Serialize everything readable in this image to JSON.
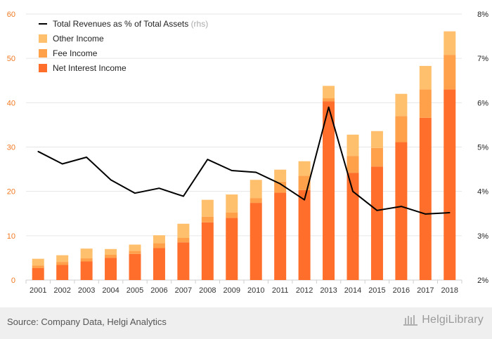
{
  "chart_data": {
    "type": "bar",
    "stacked": true,
    "categories": [
      "2001",
      "2002",
      "2003",
      "2004",
      "2005",
      "2006",
      "2007",
      "2008",
      "2009",
      "2010",
      "2011",
      "2012",
      "2013",
      "2014",
      "2015",
      "2016",
      "2017",
      "2018"
    ],
    "series": [
      {
        "name": "Net Interest Income",
        "color": "#ff6e2a",
        "values": [
          2.7,
          3.4,
          4.2,
          5.0,
          5.9,
          7.2,
          8.5,
          13.0,
          14.0,
          17.4,
          19.7,
          20.3,
          40.3,
          24.2,
          25.6,
          31.1,
          36.6,
          43.0
        ]
      },
      {
        "name": "Fee Income",
        "color": "#ffa04a",
        "values": [
          0.6,
          0.7,
          0.7,
          0.7,
          0.7,
          1.1,
          1.0,
          1.3,
          1.2,
          1.1,
          2.5,
          3.2,
          0.7,
          3.8,
          4.2,
          5.9,
          6.4,
          7.8
        ]
      },
      {
        "name": "Other Income",
        "color": "#ffc06e",
        "values": [
          1.5,
          1.5,
          2.2,
          1.3,
          1.4,
          1.8,
          3.2,
          3.8,
          4.1,
          4.1,
          2.7,
          3.3,
          2.8,
          4.8,
          3.8,
          5.0,
          5.3,
          5.3
        ]
      }
    ],
    "line": {
      "name": "Total Revenues as % of Total Assets",
      "suffix": "(rhs)",
      "color": "#000000",
      "values": [
        4.9,
        4.62,
        4.77,
        4.26,
        3.96,
        4.07,
        3.89,
        4.72,
        4.47,
        4.43,
        4.17,
        3.81,
        5.9,
        4.0,
        3.57,
        3.66,
        3.49,
        3.52
      ]
    },
    "y_left": {
      "min": 0,
      "max": 60,
      "ticks": [
        "0",
        "10",
        "20",
        "30",
        "40",
        "50",
        "60"
      ],
      "color": "#f07820"
    },
    "y_right": {
      "min": 2,
      "max": 8,
      "ticks": [
        "2%",
        "3%",
        "4%",
        "5%",
        "6%",
        "7%",
        "8%"
      ]
    },
    "legend": [
      "Total Revenues as % of Total Assets",
      "Other Income",
      "Fee Income",
      "Net Interest Income"
    ],
    "grid": true,
    "legend_position": "top-left"
  },
  "footer": {
    "source": "Source: Company Data, Helgi Analytics",
    "brand": "HelgiLibrary"
  }
}
